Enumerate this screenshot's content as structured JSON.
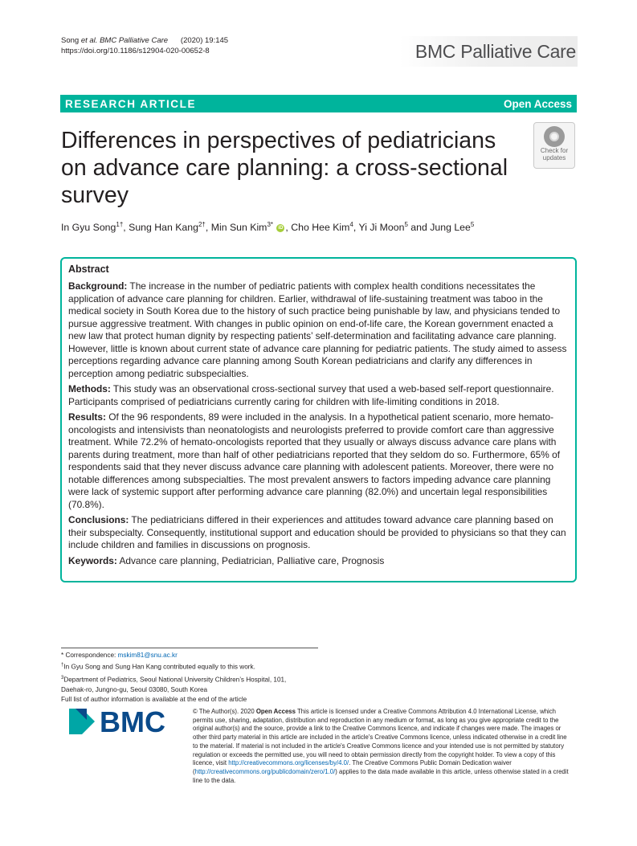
{
  "header": {
    "citation_authors": "Song ",
    "citation_etal": "et al. BMC Palliative Care",
    "citation_year": "(2020) 19:145",
    "doi": "https://doi.org/10.1186/s12904-020-00652-8",
    "journal_name": "BMC Palliative Care"
  },
  "banner": {
    "article_type": "RESEARCH ARTICLE",
    "access": "Open Access"
  },
  "check_updates": {
    "line1": "Check for",
    "line2": "updates"
  },
  "title": "Differences in perspectives of pediatricians on advance care planning: a cross-sectional survey",
  "authors": [
    {
      "name": "In Gyu Song",
      "sup": "1†"
    },
    {
      "name": "Sung Han Kang",
      "sup": "2†"
    },
    {
      "name": "Min Sun Kim",
      "sup": "3*"
    },
    {
      "name": "Cho Hee Kim",
      "sup": "4"
    },
    {
      "name": "Yi Ji Moon",
      "sup": "5"
    },
    {
      "name": "Jung Lee",
      "sup": "5"
    }
  ],
  "author_sep": ", ",
  "author_and": " and ",
  "abstract": {
    "heading": "Abstract",
    "background_label": "Background:",
    "background_text": " The increase in the number of pediatric patients with complex health conditions necessitates the application of advance care planning for children. Earlier, withdrawal of life-sustaining treatment was taboo in the medical society in South Korea due to the history of such practice being punishable by law, and physicians tended to pursue aggressive treatment. With changes in public opinion on end-of-life care, the Korean government enacted a new law that protect human dignity by respecting patients’ self-determination and facilitating advance care planning. However, little is known about current state of advance care planning for pediatric patients. The study aimed to assess perceptions regarding advance care planning among South Korean pediatricians and clarify any differences in perception among pediatric subspecialties.",
    "methods_label": "Methods:",
    "methods_text": " This study was an observational cross-sectional survey that used a web-based self-report questionnaire. Participants comprised of pediatricians currently caring for children with life-limiting conditions in 2018.",
    "results_label": "Results:",
    "results_text": " Of the 96 respondents, 89 were included in the analysis. In a hypothetical patient scenario, more hemato-oncologists and intensivists than neonatologists and neurologists preferred to provide comfort care than aggressive treatment. While 72.2% of hemato-oncologists reported that they usually or always discuss advance care plans with parents during treatment, more than half of other pediatricians reported that they seldom do so. Furthermore, 65% of respondents said that they never discuss advance care planning with adolescent patients. Moreover, there were no notable differences among subspecialties. The most prevalent answers to factors impeding advance care planning were lack of systemic support after performing advance care planning (82.0%) and uncertain legal responsibilities (70.8%).",
    "conclusions_label": "Conclusions:",
    "conclusions_text": " The pediatricians differed in their experiences and attitudes toward advance care planning based on their subspecialty. Consequently, institutional support and education should be provided to physicians so that they can include children and families in discussions on prognosis.",
    "keywords_label": "Keywords:",
    "keywords_text": " Advance care planning, Pediatrician, Palliative care, Prognosis"
  },
  "footnotes": {
    "correspondence_label": "* Correspondence: ",
    "correspondence_email": "mskim81@snu.ac.kr",
    "equal_mark": "†",
    "equal_text": "In Gyu Song and Sung Han Kang contributed equally to this work.",
    "affil_mark": "3",
    "affil_line1": "Department of Pediatrics, Seoul National University Children’s Hospital, 101,",
    "affil_line2": "Daehak-ro, Jungno-gu, Seoul 03080, South Korea",
    "full_list": "Full list of author information is available at the end of the article"
  },
  "logo_text": "BMC",
  "license": {
    "lead": "© The Author(s). 2020 ",
    "oa": "Open Access",
    "text1": " This article is licensed under a Creative Commons Attribution 4.0 International License, which permits use, sharing, adaptation, distribution and reproduction in any medium or format, as long as you give appropriate credit to the original author(s) and the source, provide a link to the Creative Commons licence, and indicate if changes were made. The images or other third party material in this article are included in the article's Creative Commons licence, unless indicated otherwise in a credit line to the material. If material is not included in the article's Creative Commons licence and your intended use is not permitted by statutory regulation or exceeds the permitted use, you will need to obtain permission directly from the copyright holder. To view a copy of this licence, visit ",
    "link1": "http://creativecommons.org/licenses/by/4.0/",
    "text2": ". The Creative Commons Public Domain Dedication waiver (",
    "link2": "http://creativecommons.org/publicdomain/zero/1.0/",
    "text3": ") applies to the data made available in this article, unless otherwise stated in a credit line to the data."
  },
  "colors": {
    "accent": "#00b49c",
    "logo_blue": "#0a4a8a",
    "logo_teal": "#00a6a6"
  }
}
